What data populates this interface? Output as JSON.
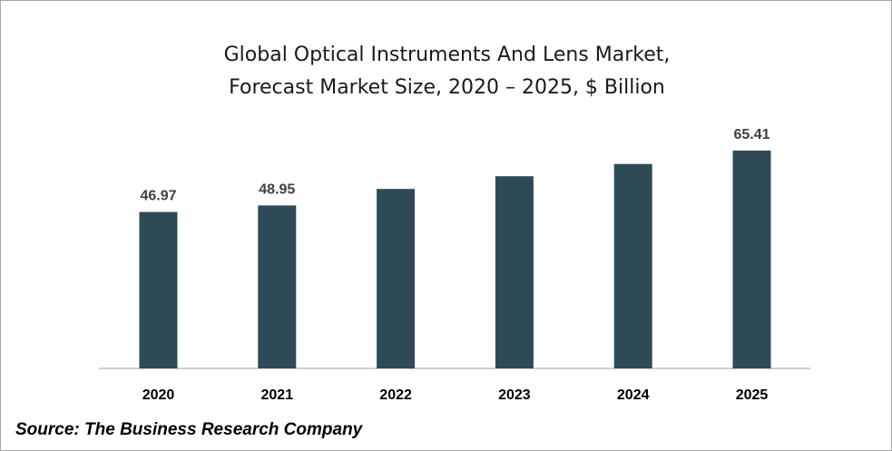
{
  "title_lines": [
    "Global Optical Instruments And Lens Market,",
    "Forecast Market Size, 2020 – 2025, $ Billion"
  ],
  "source": "Source: The Business Research Company",
  "colors": {
    "bar": "#2f4a57",
    "axis": "#bfbfbf"
  },
  "chart_data": {
    "type": "bar",
    "title": "Global Optical Instruments And Lens Market, Forecast Market Size, 2020 – 2025, $ Billion",
    "categories": [
      "2020",
      "2021",
      "2022",
      "2023",
      "2024",
      "2025"
    ],
    "values": [
      46.97,
      48.95,
      53.9,
      57.7,
      61.4,
      65.41
    ],
    "data_labels": [
      "46.97",
      "48.95",
      "",
      "",
      "",
      "65.41"
    ],
    "xlabel": "",
    "ylabel": "",
    "ylim": [
      0,
      80
    ],
    "grid": false,
    "legend": "none"
  }
}
